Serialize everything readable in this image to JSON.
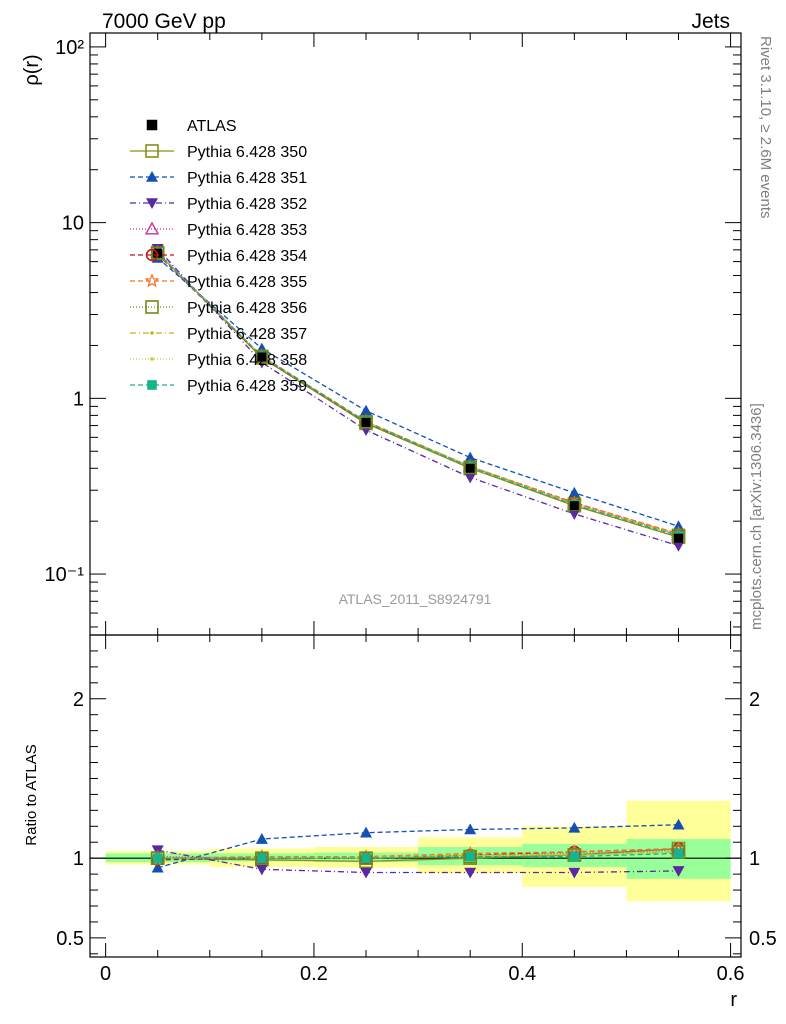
{
  "header": {
    "left": "7000 GeV pp",
    "right": "Jets"
  },
  "side_labels": {
    "rivet": "Rivet 3.1.10, ≥ 2.6M events",
    "mcplots": "mcplots.cern.ch [arXiv:1306.3436]"
  },
  "analysis_label": "ATLAS_2011_S8924791",
  "chart_data": [
    {
      "type": "line",
      "panel": "main",
      "ylabel": "ρ(r)",
      "yscale": "log",
      "ylim": [
        0.045,
        120
      ],
      "xlim": [
        -0.015,
        0.61
      ],
      "y_ticks": [
        {
          "value": 0.1,
          "label": "10⁻¹"
        },
        {
          "value": 1,
          "label": "1"
        },
        {
          "value": 10,
          "label": "10"
        },
        {
          "value": 100,
          "label": "10²"
        }
      ],
      "legend_position": "top-left",
      "x": [
        0.05,
        0.15,
        0.25,
        0.35,
        0.45,
        0.55
      ],
      "reference": {
        "name": "ATLAS",
        "values": [
          6.7,
          1.72,
          0.73,
          0.4,
          0.245,
          0.16
        ]
      },
      "series": [
        {
          "name": "Pythia 6.428 350",
          "color": "#8c8c1e",
          "dash": "",
          "marker": "square-open",
          "values": [
            6.75,
            1.7,
            0.72,
            0.4,
            0.245,
            0.162
          ]
        },
        {
          "name": "Pythia 6.428 351",
          "color": "#1450b4",
          "dash": "5,3",
          "marker": "triangle-up",
          "values": [
            6.3,
            1.92,
            0.85,
            0.46,
            0.29,
            0.187
          ]
        },
        {
          "name": "Pythia 6.428 352",
          "color": "#5a28a0",
          "dash": "6,3,1,3",
          "marker": "triangle-down",
          "values": [
            7.1,
            1.6,
            0.66,
            0.355,
            0.22,
            0.145
          ]
        },
        {
          "name": "Pythia 6.428 353",
          "color": "#c83296",
          "dash": "1,2",
          "marker": "triangle-open",
          "values": [
            6.8,
            1.73,
            0.73,
            0.41,
            0.252,
            0.168
          ]
        },
        {
          "name": "Pythia 6.428 354",
          "color": "#c8141e",
          "dash": "5,3",
          "marker": "circle-open",
          "values": [
            6.6,
            1.72,
            0.73,
            0.41,
            0.255,
            0.169
          ]
        },
        {
          "name": "Pythia 6.428 355",
          "color": "#f07828",
          "dash": "5,3",
          "marker": "star-open",
          "values": [
            6.7,
            1.74,
            0.74,
            0.41,
            0.254,
            0.17
          ]
        },
        {
          "name": "Pythia 6.428 356",
          "color": "#6e8c14",
          "dash": "1,2",
          "marker": "square-open",
          "values": [
            6.7,
            1.73,
            0.735,
            0.405,
            0.25,
            0.166
          ]
        },
        {
          "name": "Pythia 6.428 357",
          "color": "#c8b414",
          "dash": "6,3,1,3",
          "marker": "dot",
          "values": [
            6.7,
            1.73,
            0.735,
            0.41,
            0.25,
            0.167
          ]
        },
        {
          "name": "Pythia 6.428 358",
          "color": "#b4d23c",
          "dash": "1,2",
          "marker": "dot",
          "values": [
            6.7,
            1.73,
            0.735,
            0.41,
            0.25,
            0.167
          ]
        },
        {
          "name": "Pythia 6.428 359",
          "color": "#14b48c",
          "dash": "5,3",
          "marker": "square",
          "values": [
            6.7,
            1.73,
            0.735,
            0.405,
            0.248,
            0.165
          ]
        }
      ]
    },
    {
      "type": "line",
      "panel": "ratio",
      "ylabel": "Ratio to ATLAS",
      "xlabel": "r",
      "ylim": [
        0.38,
        2.4
      ],
      "xlim": [
        -0.015,
        0.61
      ],
      "x_ticks": [
        {
          "value": 0,
          "label": "0"
        },
        {
          "value": 0.2,
          "label": "0.2"
        },
        {
          "value": 0.4,
          "label": "0.4"
        },
        {
          "value": 0.6,
          "label": "0.6"
        }
      ],
      "y_ticks": [
        {
          "value": 0.5,
          "label": "0.5"
        },
        {
          "value": 1,
          "label": "1"
        },
        {
          "value": 2,
          "label": "2"
        }
      ],
      "x": [
        0.05,
        0.15,
        0.25,
        0.35,
        0.45,
        0.55
      ],
      "bin_edges": [
        0.0,
        0.1,
        0.2,
        0.3,
        0.4,
        0.5,
        0.6
      ],
      "bands": {
        "stat_green": [
          [
            0.975,
            1.03
          ],
          [
            0.98,
            1.03
          ],
          [
            0.975,
            1.035
          ],
          [
            0.955,
            1.07
          ],
          [
            0.945,
            1.09
          ],
          [
            0.87,
            1.12
          ]
        ],
        "total_yellow": [
          [
            0.96,
            1.045
          ],
          [
            0.945,
            1.06
          ],
          [
            0.94,
            1.07
          ],
          [
            0.905,
            1.13
          ],
          [
            0.82,
            1.2
          ],
          [
            0.73,
            1.36
          ]
        ]
      },
      "series": [
        {
          "name": "Pythia 6.428 350",
          "values": [
            1.0,
            0.99,
            0.98,
            1.0,
            1.02,
            1.06
          ]
        },
        {
          "name": "Pythia 6.428 351",
          "values": [
            0.94,
            1.12,
            1.16,
            1.18,
            1.19,
            1.21
          ]
        },
        {
          "name": "Pythia 6.428 352",
          "values": [
            1.05,
            0.93,
            0.91,
            0.91,
            0.91,
            0.92
          ]
        },
        {
          "name": "Pythia 6.428 353",
          "values": [
            1.01,
            1.0,
            1.0,
            1.02,
            1.03,
            1.05
          ]
        },
        {
          "name": "Pythia 6.428 354",
          "values": [
            0.99,
            1.0,
            1.0,
            1.02,
            1.04,
            1.06
          ]
        },
        {
          "name": "Pythia 6.428 355",
          "values": [
            1.0,
            1.01,
            1.01,
            1.03,
            1.04,
            1.06
          ]
        },
        {
          "name": "Pythia 6.428 356",
          "values": [
            1.0,
            1.0,
            1.0,
            1.01,
            1.02,
            1.04
          ]
        },
        {
          "name": "Pythia 6.428 357",
          "values": [
            1.0,
            1.0,
            1.0,
            1.02,
            1.02,
            1.04
          ]
        },
        {
          "name": "Pythia 6.428 358",
          "values": [
            1.0,
            1.0,
            1.0,
            1.02,
            1.02,
            1.04
          ]
        },
        {
          "name": "Pythia 6.428 359",
          "values": [
            1.0,
            1.0,
            1.0,
            1.01,
            1.01,
            1.03
          ]
        }
      ]
    }
  ]
}
